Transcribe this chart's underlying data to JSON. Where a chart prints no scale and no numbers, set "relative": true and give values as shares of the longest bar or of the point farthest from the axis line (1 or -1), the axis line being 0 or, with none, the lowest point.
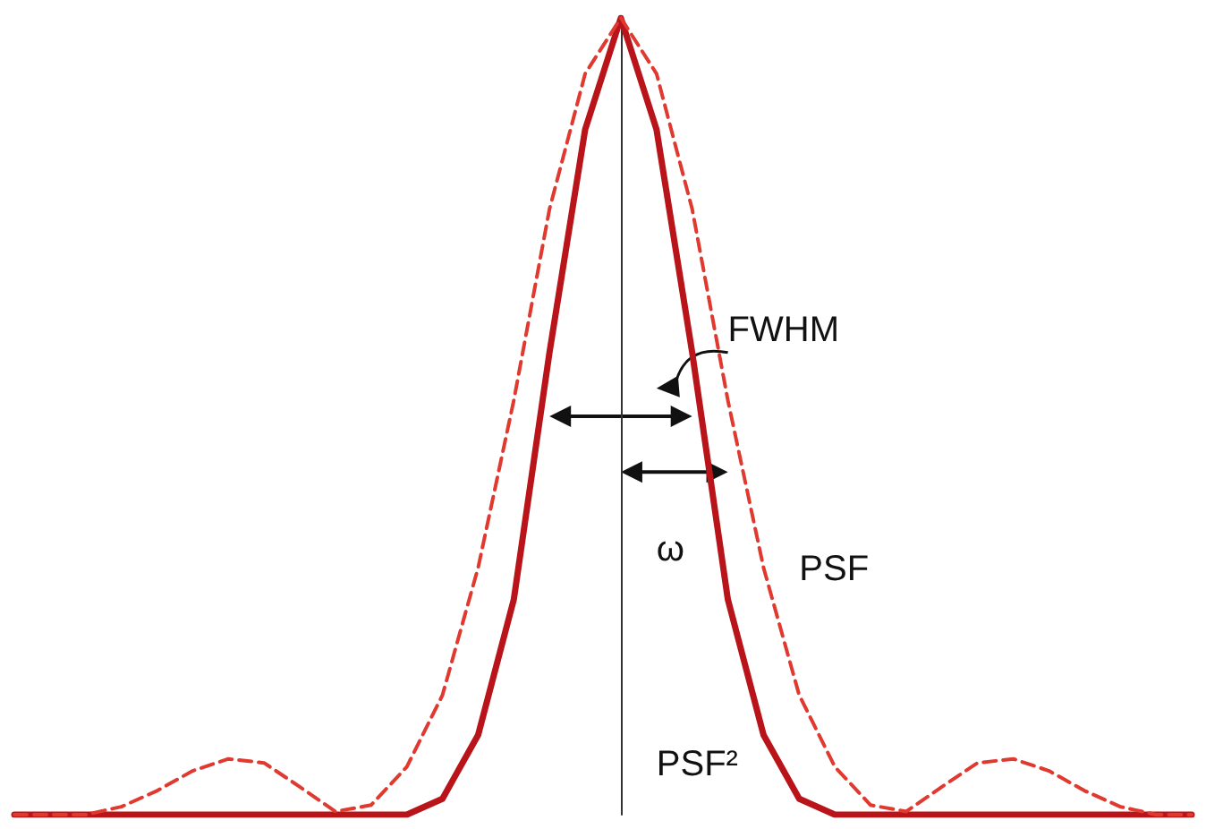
{
  "chart_data": {
    "type": "line",
    "relative": true,
    "legend": false,
    "grid": false,
    "marker": "none",
    "categories": [
      null,
      null,
      null,
      null,
      null,
      null,
      null,
      null,
      null,
      null,
      null,
      null,
      null,
      null,
      null,
      null,
      null,
      null,
      null,
      null,
      null,
      null,
      null,
      null,
      null,
      null,
      null,
      null,
      null,
      null,
      null,
      null,
      null,
      null
    ],
    "series": [
      {
        "name": "PSF",
        "color": "#e03a30",
        "line_style": "dashed",
        "values": [
          0,
          0,
          0,
          0.01,
          0.03,
          0.055,
          0.07,
          0.065,
          0.035,
          0.004,
          0.012,
          0.06,
          0.15,
          0.31,
          0.52,
          0.76,
          0.93,
          1,
          0.93,
          0.76,
          0.52,
          0.31,
          0.15,
          0.06,
          0.012,
          0.004,
          0.035,
          0.065,
          0.07,
          0.055,
          0.03,
          0.01,
          0,
          0
        ]
      },
      {
        "name": "PSF²",
        "color": "#b81419",
        "line_style": "solid",
        "values": [
          0,
          0,
          0,
          0,
          0,
          0,
          0,
          0,
          0,
          0,
          0,
          0,
          0.02,
          0.1,
          0.27,
          0.58,
          0.86,
          1,
          0.86,
          0.58,
          0.27,
          0.1,
          0.02,
          0,
          0,
          0,
          0,
          0,
          0,
          0,
          0,
          0,
          0,
          0
        ]
      }
    ],
    "annotations": [
      "FWHM",
      "ω"
    ]
  }
}
